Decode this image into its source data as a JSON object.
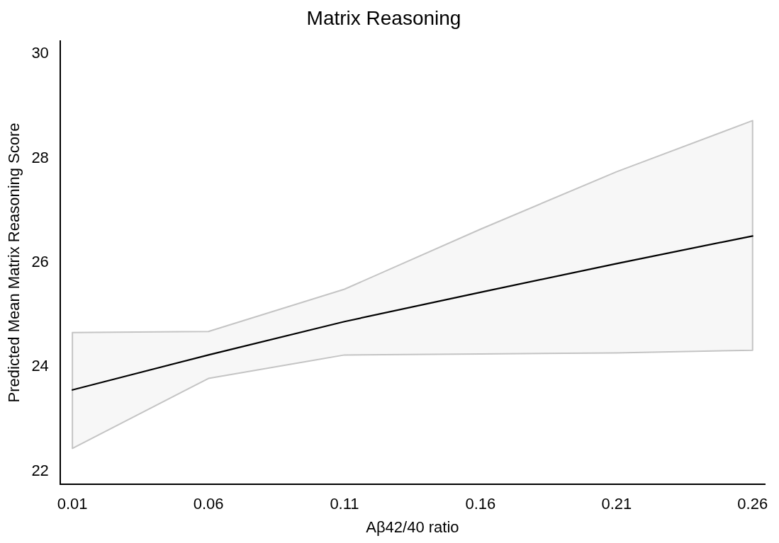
{
  "chart_data": {
    "type": "line",
    "title": "Matrix Reasoning",
    "xlabel": "Aβ42/40 ratio",
    "ylabel": "Predicted Mean Matrix Reasoning Score",
    "x": [
      0.01,
      0.06,
      0.11,
      0.16,
      0.21,
      0.26
    ],
    "series": [
      {
        "color": "#000000",
        "values": [
          23.56,
          24.23,
          24.87,
          25.43,
          25.98,
          26.51
        ],
        "lower": [
          22.44,
          23.78,
          24.23,
          24.25,
          24.27,
          24.32
        ],
        "upper": [
          24.66,
          24.68,
          25.49,
          26.64,
          27.74,
          28.72
        ]
      }
    ],
    "xlim": [
      0.0055,
      0.2645
    ],
    "ylim": [
      21.75,
      30.25
    ],
    "xticks": [
      {
        "value": 0.01,
        "label": "0.01"
      },
      {
        "value": 0.06,
        "label": "0.06"
      },
      {
        "value": 0.11,
        "label": "0.11"
      },
      {
        "value": 0.16,
        "label": "0.16"
      },
      {
        "value": 0.21,
        "label": "0.21"
      },
      {
        "value": 0.26,
        "label": "0.26"
      }
    ],
    "yticks": [
      22,
      24,
      26,
      28,
      30
    ],
    "grid": false,
    "legend": false,
    "marker": "none",
    "line_style": "solid"
  }
}
